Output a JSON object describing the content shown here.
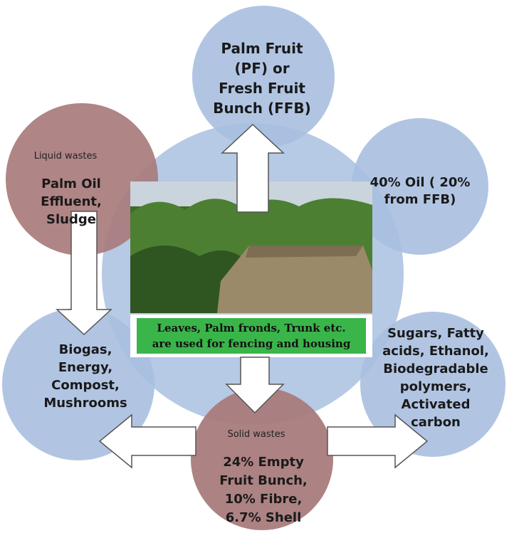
{
  "nodes": [
    {
      "lines": [
        "Palm Fruit",
        "(PF)  or",
        "Fresh Fruit",
        "Bunch (FFB)"
      ]
    },
    {
      "lines": [
        "40% Oil ( 20%",
        "from FFB)"
      ]
    },
    {
      "lines": [
        "Sugars, Fatty",
        "acids, Ethanol,",
        "Biodegradable",
        "polymers,",
        "Activated",
        "carbon"
      ]
    },
    {
      "heading": "Solid wastes",
      "lines": [
        "24% Empty",
        "Fruit Bunch,",
        "10% Fibre,",
        "6.7% Shell"
      ]
    },
    {
      "lines": [
        "Biogas,",
        "Energy,",
        "Compost,",
        "Mushrooms"
      ]
    },
    {
      "heading": "Liquid wastes",
      "lines": [
        "Palm Oil",
        "Effluent,",
        "Sludge"
      ]
    }
  ],
  "center": {
    "caption": [
      "Leaves, Palm fronds, Trunk etc.",
      "are used for fencing and housing"
    ]
  }
}
